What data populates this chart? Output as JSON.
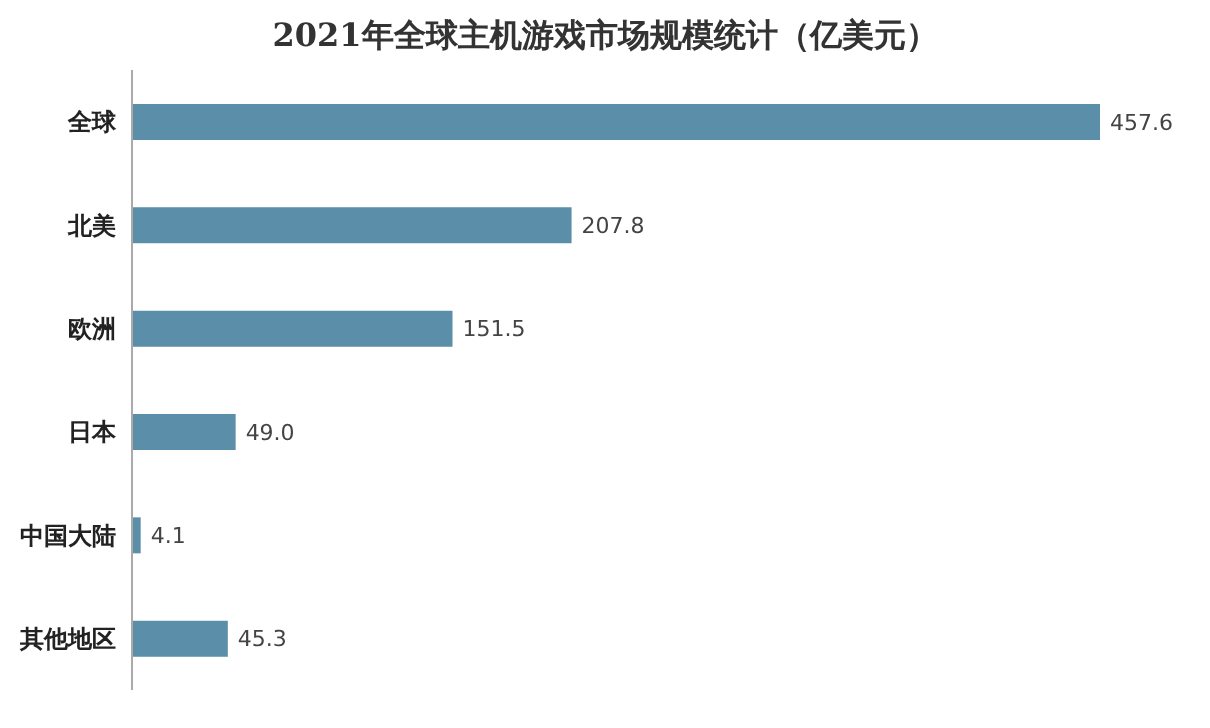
{
  "chart_data": {
    "type": "bar",
    "orientation": "horizontal",
    "tick_labels": "y",
    "title": "2021年全球主机游戏市场规模统计（亿美元）",
    "categories": [
      "全球",
      "北美",
      "欧洲",
      "日本",
      "中国大陆",
      "其他地区"
    ],
    "values": [
      457.6,
      207.8,
      151.5,
      49.0,
      4.1,
      45.3
    ],
    "value_labels": [
      "457.6",
      "207.8",
      "151.5",
      "49.0",
      "4.1",
      "45.3"
    ],
    "color": "#5b8ea8",
    "grid": false,
    "legend": false
  }
}
